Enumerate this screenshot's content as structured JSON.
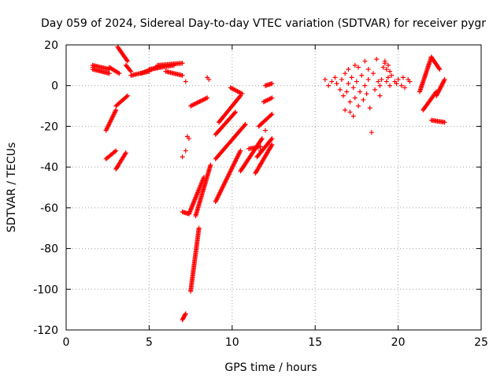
{
  "chart_data": {
    "type": "scatter",
    "title": "Day 059 of 2024, Sidereal Day-to-day VTEC variation (SDTVAR) for receiver pygr",
    "xlabel": "GPS time / hours",
    "ylabel": "SDTVAR / TECUs",
    "xlim": [
      0,
      25
    ],
    "ylim": [
      -120,
      20
    ],
    "xticks": [
      0,
      5,
      10,
      15,
      20,
      25
    ],
    "yticks": [
      -120,
      -100,
      -80,
      -60,
      -40,
      -20,
      0,
      20
    ],
    "xtick_labels": [
      "0",
      "5",
      "10",
      "15",
      "20",
      "25"
    ],
    "ytick_labels": [
      "-120",
      "-100",
      "-80",
      "-60",
      "-40",
      "-20",
      "0",
      "20"
    ],
    "grid": true,
    "marker": "+",
    "series_color": "#ff0000",
    "segments": [
      {
        "x0": 1.6,
        "y0": 10,
        "x1": 2.6,
        "y1": 8
      },
      {
        "x0": 1.6,
        "y0": 8,
        "x1": 2.6,
        "y1": 6
      },
      {
        "x0": 2.6,
        "y0": 9,
        "x1": 3.2,
        "y1": 6
      },
      {
        "x0": 2.4,
        "y0": -22,
        "x1": 3.0,
        "y1": -12
      },
      {
        "x0": 2.4,
        "y0": -36,
        "x1": 3.0,
        "y1": -32
      },
      {
        "x0": 3.0,
        "y0": -41,
        "x1": 3.6,
        "y1": -33
      },
      {
        "x0": 3.0,
        "y0": -10,
        "x1": 3.7,
        "y1": -5
      },
      {
        "x0": 3.1,
        "y0": 19,
        "x1": 3.7,
        "y1": 12
      },
      {
        "x0": 3.6,
        "y0": 10,
        "x1": 3.9,
        "y1": 7
      },
      {
        "x0": 3.9,
        "y0": 5,
        "x1": 5.0,
        "y1": 7
      },
      {
        "x0": 4.5,
        "y0": 6,
        "x1": 5.5,
        "y1": 9
      },
      {
        "x0": 5.0,
        "y0": 8,
        "x1": 6.5,
        "y1": 10
      },
      {
        "x0": 5.5,
        "y0": 10,
        "x1": 7.0,
        "y1": 11
      },
      {
        "x0": 6.0,
        "y0": 7,
        "x1": 7.0,
        "y1": 5
      },
      {
        "x0": 7.0,
        "y0": -115,
        "x1": 7.2,
        "y1": -112
      },
      {
        "x0": 7.0,
        "y0": -62,
        "x1": 7.4,
        "y1": -63
      },
      {
        "x0": 7.4,
        "y0": -63,
        "x1": 8.3,
        "y1": -45
      },
      {
        "x0": 7.5,
        "y0": -101,
        "x1": 8.0,
        "y1": -70
      },
      {
        "x0": 7.8,
        "y0": -64,
        "x1": 8.7,
        "y1": -39
      },
      {
        "x0": 7.5,
        "y0": -10,
        "x1": 8.5,
        "y1": -6
      },
      {
        "x0": 9.0,
        "y0": -57,
        "x1": 10.5,
        "y1": -32
      },
      {
        "x0": 9.0,
        "y0": -24,
        "x1": 10.2,
        "y1": -13
      },
      {
        "x0": 9.0,
        "y0": -36,
        "x1": 10.8,
        "y1": -19
      },
      {
        "x0": 9.2,
        "y0": -18,
        "x1": 10.5,
        "y1": -5
      },
      {
        "x0": 9.9,
        "y0": -1,
        "x1": 10.6,
        "y1": -4
      },
      {
        "x0": 10.5,
        "y0": -42,
        "x1": 11.8,
        "y1": -26
      },
      {
        "x0": 11.0,
        "y0": -31,
        "x1": 11.7,
        "y1": -30
      },
      {
        "x0": 11.4,
        "y0": -43,
        "x1": 12.4,
        "y1": -29
      },
      {
        "x0": 11.5,
        "y0": -35,
        "x1": 12.4,
        "y1": -26
      },
      {
        "x0": 11.6,
        "y0": -20,
        "x1": 12.4,
        "y1": -14
      },
      {
        "x0": 11.9,
        "y0": -8,
        "x1": 12.4,
        "y1": -6
      },
      {
        "x0": 12.0,
        "y0": 0,
        "x1": 12.4,
        "y1": 1
      },
      {
        "x0": 21.3,
        "y0": -3,
        "x1": 22.0,
        "y1": 14
      },
      {
        "x0": 21.5,
        "y0": -12,
        "x1": 22.3,
        "y1": -3
      },
      {
        "x0": 22.0,
        "y0": -17,
        "x1": 22.8,
        "y1": -18
      },
      {
        "x0": 22.0,
        "y0": 14,
        "x1": 22.5,
        "y1": 8
      },
      {
        "x0": 22.3,
        "y0": -5,
        "x1": 22.8,
        "y1": 3
      }
    ],
    "points": [
      [
        1.6,
        9
      ],
      [
        7.2,
        2
      ],
      [
        7.2,
        -32
      ],
      [
        7.0,
        -35
      ],
      [
        7.3,
        -25
      ],
      [
        7.4,
        -26
      ],
      [
        8.5,
        4
      ],
      [
        8.6,
        3
      ],
      [
        12.0,
        -22
      ],
      [
        11.7,
        -30
      ],
      [
        11.7,
        -32
      ],
      [
        15.6,
        3
      ],
      [
        15.8,
        0
      ],
      [
        16.0,
        2
      ],
      [
        16.2,
        4
      ],
      [
        16.3,
        1
      ],
      [
        16.5,
        -2
      ],
      [
        16.6,
        3
      ],
      [
        16.7,
        -5
      ],
      [
        16.8,
        6
      ],
      [
        16.9,
        -3
      ],
      [
        17.0,
        1
      ],
      [
        17.1,
        -8
      ],
      [
        17.2,
        4
      ],
      [
        17.3,
        -1
      ],
      [
        17.4,
        -6
      ],
      [
        17.5,
        2
      ],
      [
        17.6,
        -10
      ],
      [
        17.7,
        -3
      ],
      [
        17.8,
        5
      ],
      [
        17.9,
        -7
      ],
      [
        18.0,
        0
      ],
      [
        18.1,
        -4
      ],
      [
        18.2,
        3
      ],
      [
        18.3,
        -11
      ],
      [
        18.4,
        -23
      ],
      [
        18.5,
        6
      ],
      [
        18.6,
        -2
      ],
      [
        18.7,
        13
      ],
      [
        18.8,
        2
      ],
      [
        18.9,
        -5
      ],
      [
        17.0,
        8
      ],
      [
        17.4,
        10
      ],
      [
        17.6,
        9
      ],
      [
        18.0,
        12
      ],
      [
        18.2,
        8
      ],
      [
        16.8,
        -12
      ],
      [
        17.1,
        -13
      ],
      [
        17.3,
        -15
      ],
      [
        18.9,
        0
      ],
      [
        19.0,
        3
      ],
      [
        19.1,
        9
      ],
      [
        19.2,
        11
      ],
      [
        19.3,
        2
      ],
      [
        19.4,
        4
      ],
      [
        19.5,
        0
      ],
      [
        19.6,
        5
      ],
      [
        19.8,
        2
      ],
      [
        19.9,
        1
      ],
      [
        20.0,
        3
      ],
      [
        20.2,
        0
      ],
      [
        20.3,
        4
      ],
      [
        20.4,
        -1
      ],
      [
        20.6,
        3
      ],
      [
        20.7,
        2
      ],
      [
        19.2,
        12
      ],
      [
        19.4,
        10
      ],
      [
        19.5,
        7
      ],
      [
        19.3,
        8
      ]
    ]
  }
}
